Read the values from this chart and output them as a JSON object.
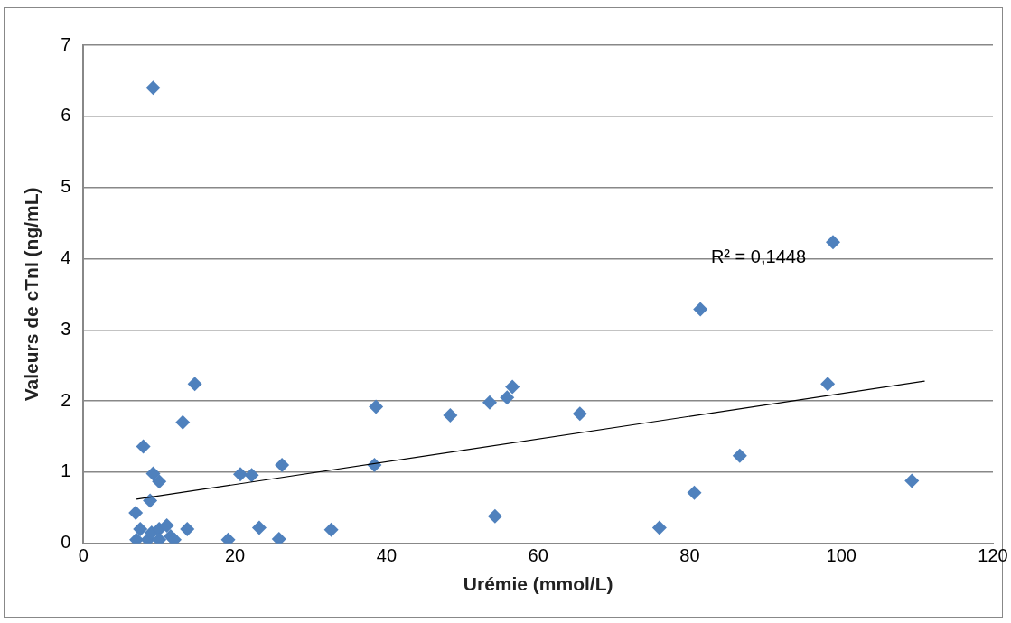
{
  "chart_data": {
    "type": "scatter",
    "xlabel": "Urémie (mmol/L)",
    "ylabel": "Valeurs de cTnI (ng/mL)",
    "xlim": [
      0,
      120
    ],
    "xticks": [
      0,
      20,
      40,
      60,
      80,
      100,
      120
    ],
    "ylim": [
      0,
      7
    ],
    "yticks": [
      0,
      1,
      2,
      3,
      4,
      5,
      6,
      7
    ],
    "grid": "y",
    "legend": false,
    "marker": "diamond",
    "annotations": [
      "R² = 0,1448"
    ],
    "series": [
      {
        "color": "#4f81bd",
        "x": [
          9.2,
          14.7,
          13.1,
          7.9,
          9.2,
          10.0,
          8.8,
          6.9,
          7.5,
          8.5,
          9.0,
          10.0,
          11.0,
          11.5,
          12.0,
          7.0,
          10.0,
          13.7,
          19.1,
          20.7,
          22.2,
          23.2,
          25.8,
          26.2,
          32.7,
          38.6,
          38.4,
          48.4,
          53.6,
          55.9,
          56.6,
          54.3,
          65.5,
          76.0,
          80.6,
          81.4,
          86.6,
          98.2,
          98.9,
          109.3
        ],
        "values": [
          6.4,
          2.24,
          1.7,
          1.36,
          0.98,
          0.87,
          0.6,
          0.43,
          0.2,
          0.05,
          0.15,
          0.2,
          0.25,
          0.1,
          0.05,
          0.05,
          0.05,
          0.2,
          0.05,
          0.97,
          0.96,
          0.22,
          0.06,
          1.1,
          0.19,
          1.92,
          1.1,
          1.8,
          1.98,
          2.05,
          2.2,
          0.38,
          1.82,
          0.22,
          0.71,
          3.29,
          1.23,
          2.24,
          4.23,
          0.88
        ]
      },
      {
        "type": "line",
        "color": "#000000",
        "marker": "none",
        "x": [
          7,
          111
        ],
        "values": [
          0.62,
          2.28
        ]
      }
    ]
  }
}
